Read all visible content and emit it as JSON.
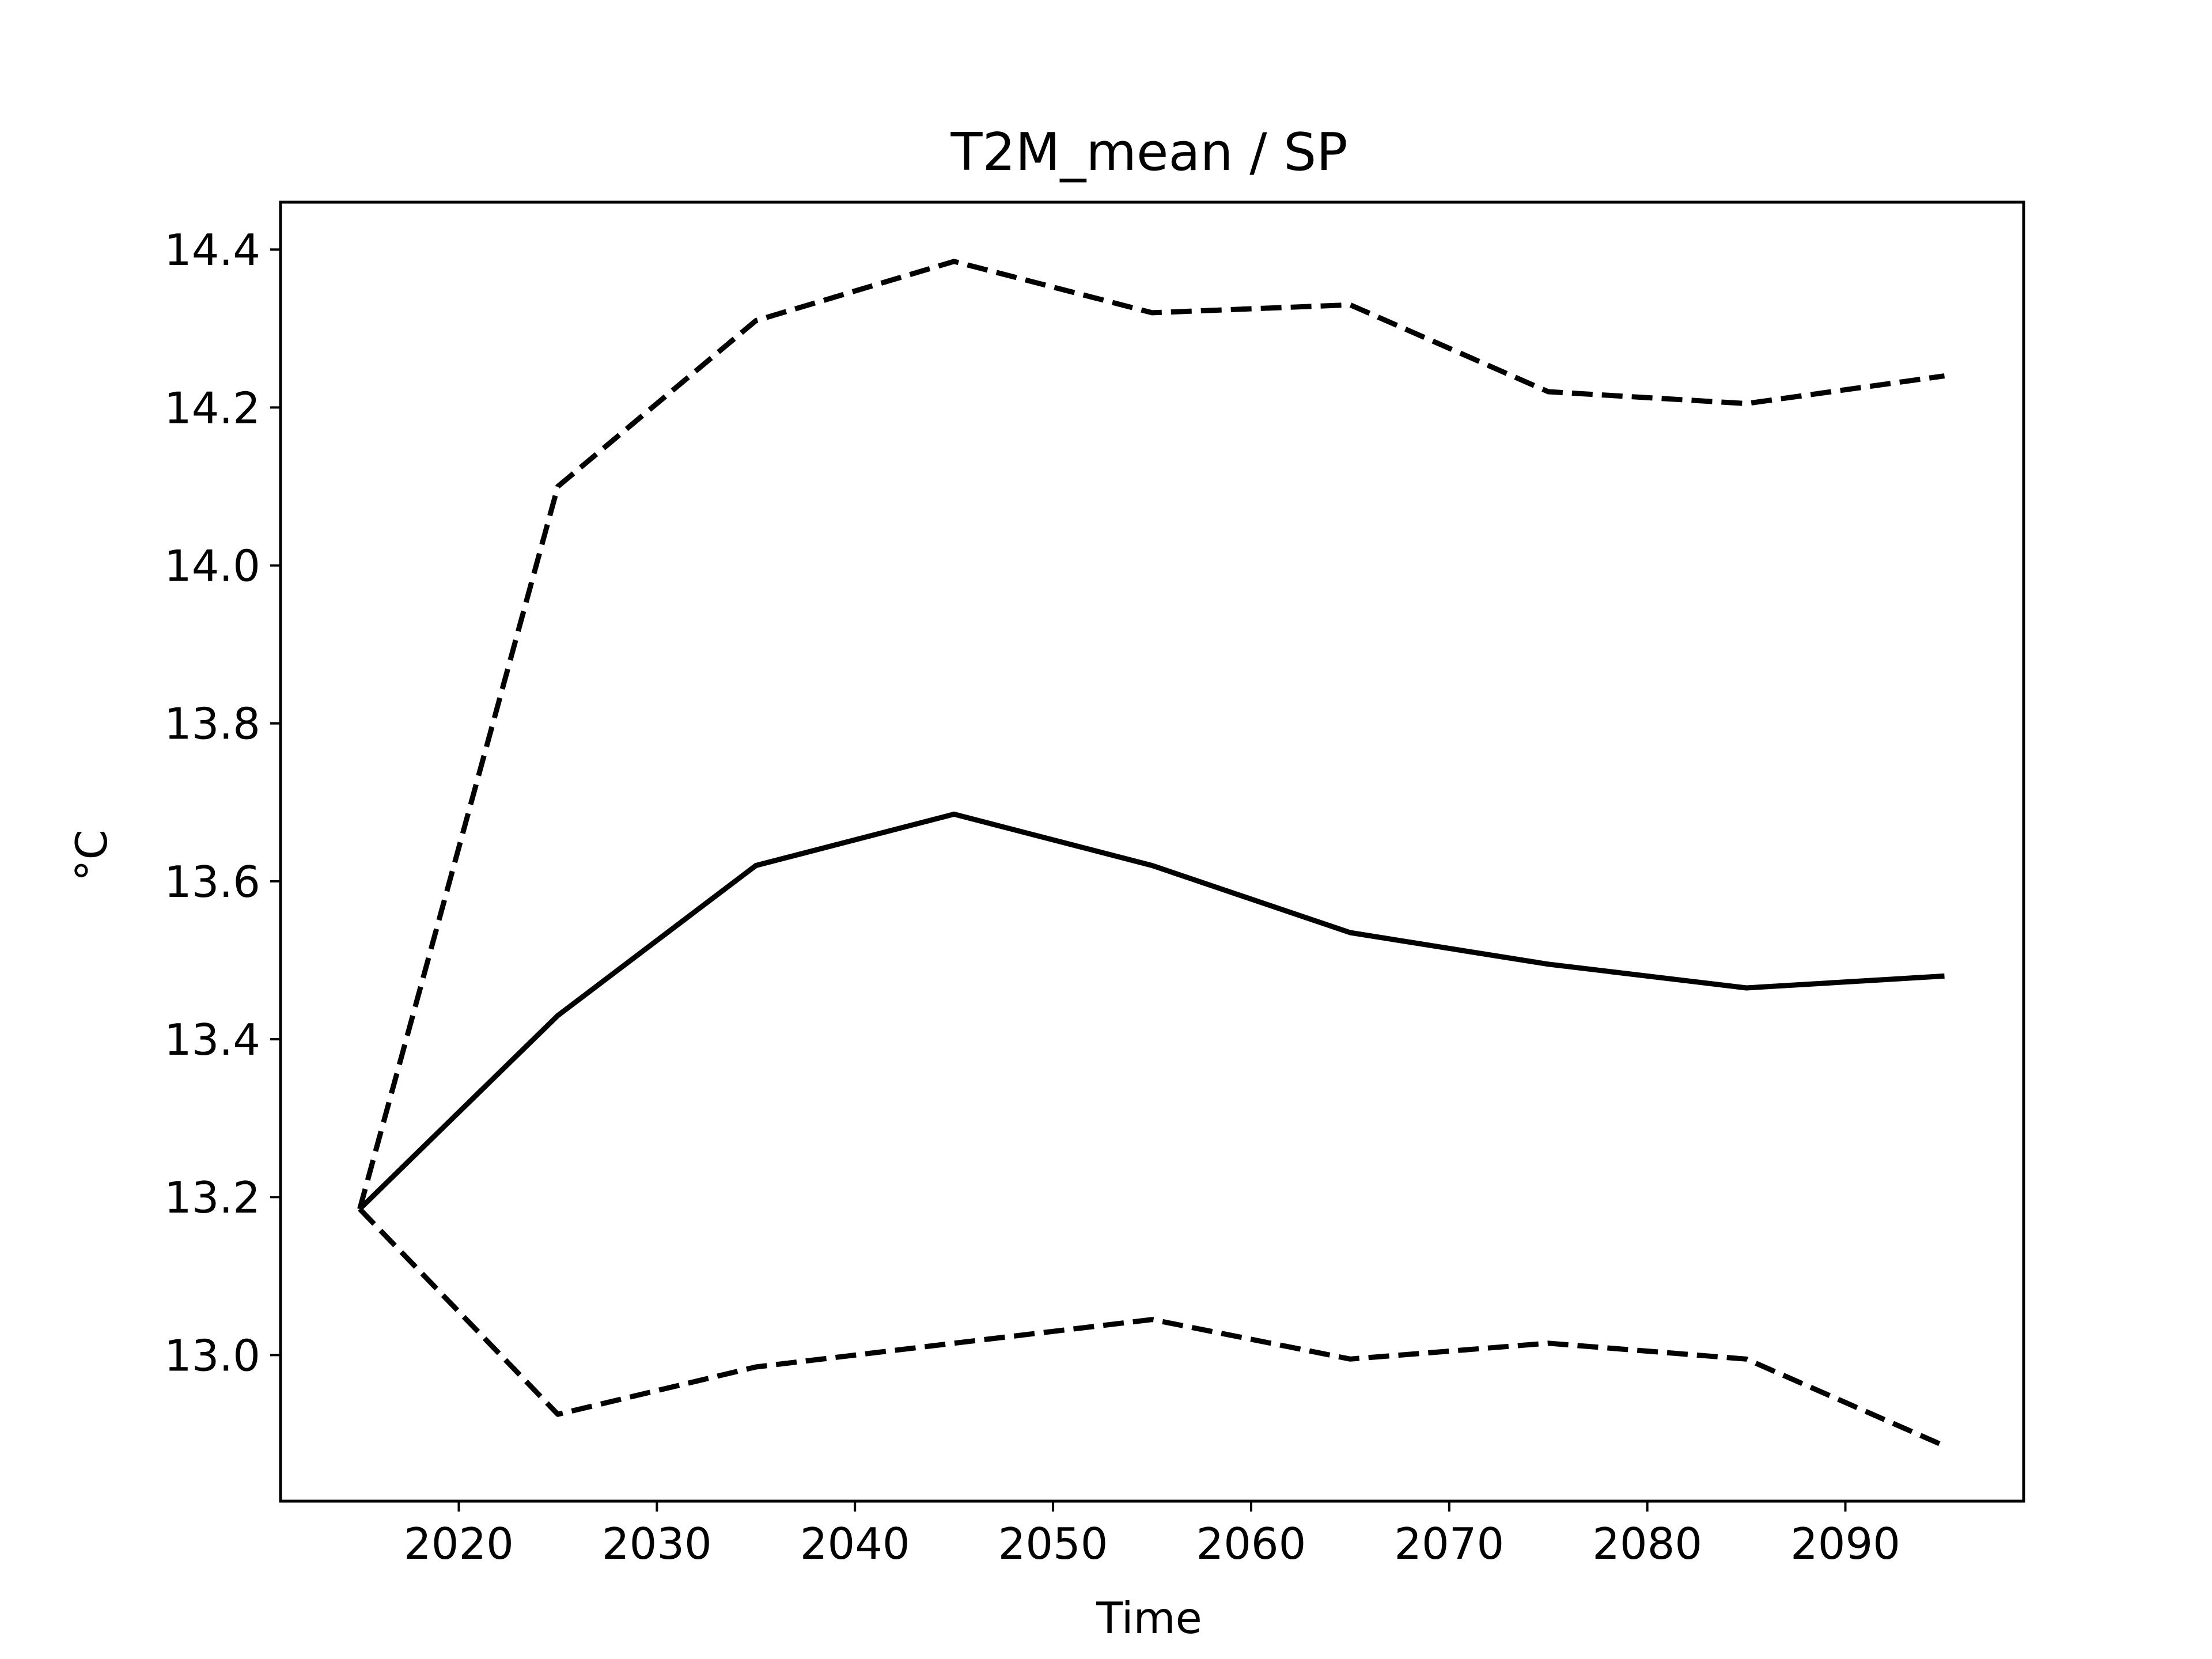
{
  "chart_data": {
    "type": "line",
    "title": "T2M_mean / SP",
    "xlabel": "Time",
    "ylabel": "°C",
    "x": [
      2015,
      2025,
      2035,
      2045,
      2055,
      2065,
      2075,
      2085,
      2095
    ],
    "series": [
      {
        "style": "solid",
        "color": "#000000",
        "values": [
          13.185,
          13.43,
          13.62,
          13.685,
          13.62,
          13.535,
          13.495,
          13.465,
          13.48
        ]
      },
      {
        "style": "dashed",
        "color": "#000000",
        "values": [
          13.185,
          14.1,
          14.31,
          14.385,
          14.32,
          14.33,
          14.22,
          14.205,
          14.24
        ]
      },
      {
        "style": "dashed",
        "color": "#000000",
        "values": [
          13.185,
          12.925,
          12.985,
          13.015,
          13.045,
          12.995,
          13.015,
          12.995,
          12.885
        ]
      }
    ],
    "xticks": [
      "2020",
      "2030",
      "2040",
      "2050",
      "2060",
      "2070",
      "2080",
      "2090"
    ],
    "yticks": [
      "13.0",
      "13.2",
      "13.4",
      "13.6",
      "13.8",
      "14.0",
      "14.2",
      "14.4"
    ],
    "xlim": [
      2011,
      2099
    ],
    "ylim": [
      12.815,
      14.46
    ],
    "grid": false,
    "legend": "none"
  }
}
